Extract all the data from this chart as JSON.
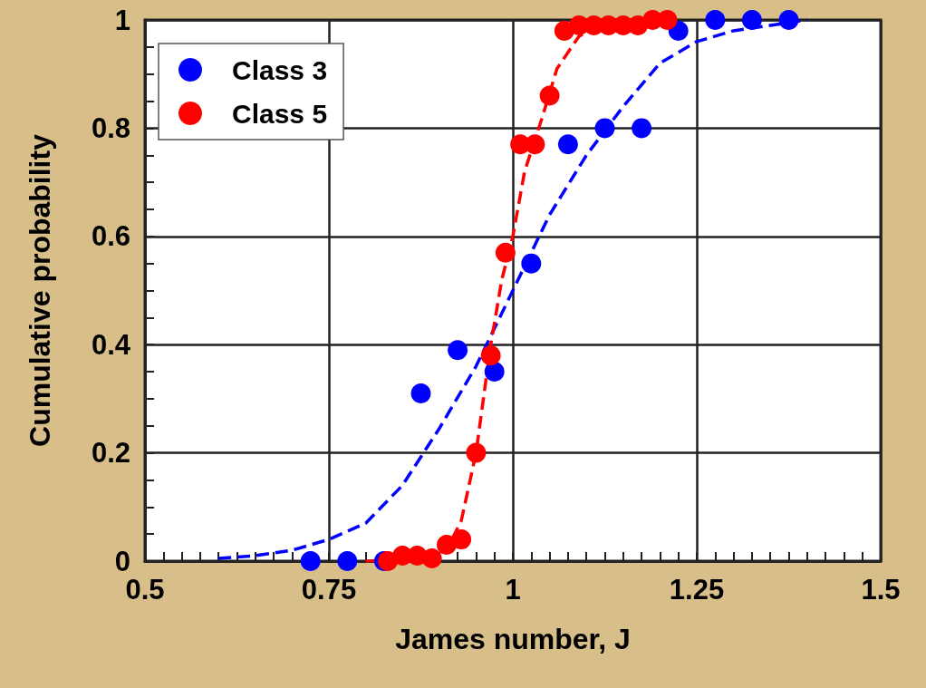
{
  "chart_data": {
    "type": "scatter",
    "xlabel": "James number, J",
    "ylabel": "Cumulative probability",
    "xlim": [
      0.5,
      1.5
    ],
    "xticks": [
      0.5,
      0.75,
      1,
      1.25,
      1.5
    ],
    "ylim": [
      0,
      1
    ],
    "yticks": [
      0,
      0.2,
      0.4,
      0.6,
      0.8,
      1
    ],
    "grid": true,
    "legend": "top left",
    "marker": "circle",
    "series": [
      {
        "name": "Class 3",
        "color": "#0000ff",
        "x": [
          0.725,
          0.775,
          0.825,
          0.875,
          0.925,
          0.975,
          1.025,
          1.075,
          1.125,
          1.175,
          1.225,
          1.275,
          1.325,
          1.375
        ],
        "values": [
          0,
          0,
          0,
          0.31,
          0.39,
          0.35,
          0.55,
          0.77,
          0.8,
          0.8,
          0.98,
          1,
          1,
          1
        ]
      },
      {
        "name": "Class 5",
        "color": "#ff0000",
        "x": [
          0.83,
          0.85,
          0.87,
          0.89,
          0.91,
          0.93,
          0.95,
          0.97,
          0.99,
          1.01,
          1.03,
          1.05,
          1.07,
          1.09,
          1.11,
          1.13,
          1.15,
          1.17,
          1.19,
          1.21
        ],
        "values": [
          0,
          0.01,
          0.01,
          0.005,
          0.03,
          0.04,
          0.2,
          0.38,
          0.57,
          0.77,
          0.77,
          0.86,
          0.98,
          0.99,
          0.99,
          0.99,
          0.99,
          0.99,
          1,
          1
        ]
      },
      {
        "type": "line",
        "color": "#0000ff",
        "line_style": "dashed",
        "marker": "none",
        "x": [
          0.6,
          0.65,
          0.7,
          0.75,
          0.8,
          0.85,
          0.9,
          0.95,
          1.0,
          1.05,
          1.1,
          1.15,
          1.2,
          1.25,
          1.3,
          1.35,
          1.4
        ],
        "values": [
          0.005,
          0.01,
          0.02,
          0.04,
          0.07,
          0.14,
          0.245,
          0.36,
          0.5,
          0.64,
          0.75,
          0.84,
          0.92,
          0.96,
          0.98,
          0.99,
          1
        ]
      },
      {
        "type": "line",
        "color": "#ff0000",
        "line_style": "dashed",
        "marker": "none",
        "x": [
          0.8,
          0.85,
          0.88,
          0.91,
          0.93,
          0.95,
          0.97,
          0.985,
          1.0,
          1.016,
          1.04,
          1.06,
          1.09,
          1.12,
          1.15,
          1.2
        ],
        "values": [
          0,
          0.002,
          0.005,
          0.02,
          0.075,
          0.2,
          0.4,
          0.52,
          0.6,
          0.72,
          0.82,
          0.91,
          0.97,
          0.99,
          1,
          1
        ]
      }
    ]
  }
}
